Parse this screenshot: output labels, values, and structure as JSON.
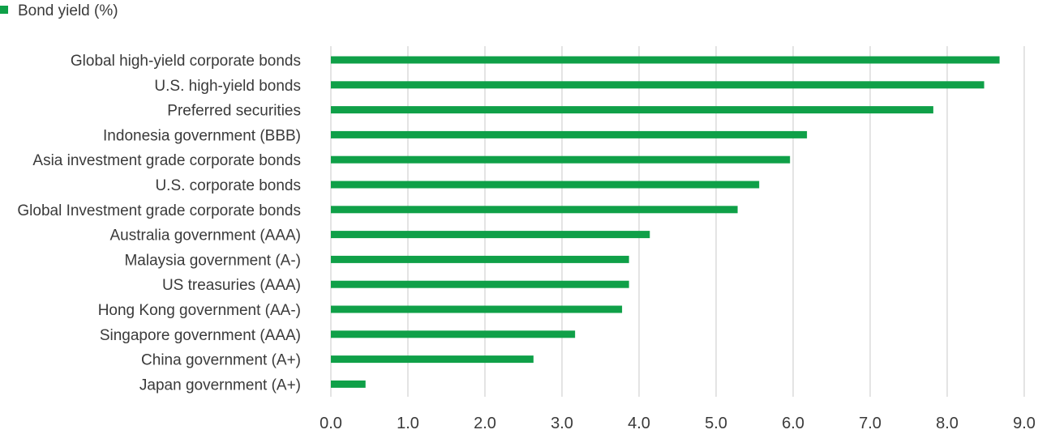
{
  "chart_data": {
    "type": "bar",
    "orientation": "horizontal",
    "legend": {
      "label": "Bond yield (%)",
      "position": "top-left"
    },
    "colors": {
      "bar": "#0fa048",
      "grid": "#c8c8c8",
      "text": "#3a3a3a"
    },
    "xlim": [
      0,
      9
    ],
    "x_ticks": [
      "0.0",
      "1.0",
      "2.0",
      "3.0",
      "4.0",
      "5.0",
      "6.0",
      "7.0",
      "8.0",
      "9.0"
    ],
    "grid": true,
    "categories": [
      "Global high-yield corporate bonds",
      "U.S. high-yield bonds",
      "Preferred securities",
      "Indonesia government (BBB)",
      "Asia investment grade corporate bonds",
      "U.S. corporate bonds",
      "Global Investment grade corporate bonds",
      "Australia government (AAA)",
      "Malaysia government (A-)",
      "US treasuries (AAA)",
      "Hong Kong government (AA-)",
      "Singapore government (AAA)",
      "China government (A+)",
      "Japan government (A+)"
    ],
    "values": [
      8.68,
      8.48,
      7.82,
      6.18,
      5.96,
      5.56,
      5.28,
      4.14,
      3.87,
      3.87,
      3.78,
      3.17,
      2.63,
      0.45
    ]
  }
}
